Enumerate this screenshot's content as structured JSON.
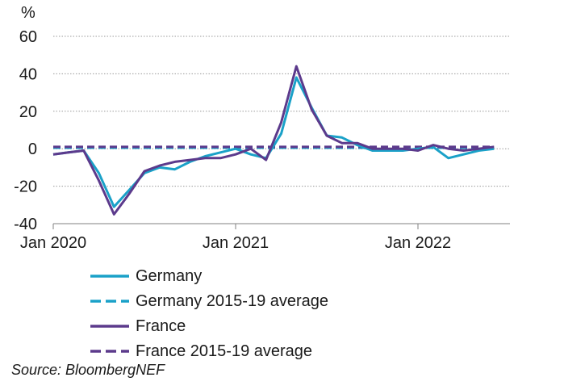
{
  "chart_data": {
    "type": "line",
    "ylabel": "%",
    "ylim": [
      -40,
      60
    ],
    "yticks": [
      -40,
      -20,
      0,
      20,
      40,
      60
    ],
    "xtick_labels": [
      "Jan 2020",
      "Jan 2021",
      "Jan 2022"
    ],
    "x": [
      "2020-01",
      "2020-02",
      "2020-03",
      "2020-04",
      "2020-05",
      "2020-06",
      "2020-07",
      "2020-08",
      "2020-09",
      "2020-10",
      "2020-11",
      "2020-12",
      "2021-01",
      "2021-02",
      "2021-03",
      "2021-04",
      "2021-05",
      "2021-06",
      "2021-07",
      "2021-08",
      "2021-09",
      "2021-10",
      "2021-11",
      "2021-12",
      "2022-01",
      "2022-02",
      "2022-03",
      "2022-04",
      "2022-05",
      "2022-06"
    ],
    "series": [
      {
        "name": "Germany",
        "color": "#1aa1c8",
        "style": "solid",
        "values": [
          -3,
          -2,
          -1,
          -13,
          -31,
          -22,
          -13,
          -10,
          -11,
          -7,
          -4,
          -2,
          0,
          -3,
          -5,
          8,
          38,
          22,
          7,
          6,
          2,
          -1,
          -1,
          -1,
          0,
          1,
          -5,
          -3,
          -1,
          0
        ]
      },
      {
        "name": "Germany 2015-19 average",
        "color": "#1aa1c8",
        "style": "dashed",
        "values": [
          0.5,
          0.5,
          0.5,
          0.5,
          0.5,
          0.5,
          0.5,
          0.5,
          0.5,
          0.5,
          0.5,
          0.5,
          0.5,
          0.5,
          0.5,
          0.5,
          0.5,
          0.5,
          0.5,
          0.5,
          0.5,
          0.5,
          0.5,
          0.5,
          0.5,
          0.5,
          0.5,
          0.5,
          0.5,
          0.5
        ]
      },
      {
        "name": "France",
        "color": "#5c3a8c",
        "style": "solid",
        "values": [
          -3,
          -2,
          -1,
          -17,
          -35,
          -24,
          -12,
          -9,
          -7,
          -6,
          -5,
          -5,
          -3,
          0,
          -6,
          14,
          44,
          21,
          7,
          3,
          3,
          0,
          0,
          0,
          -1,
          2,
          0,
          -1,
          0,
          1
        ]
      },
      {
        "name": "France 2015-19 average",
        "color": "#5c3a8c",
        "style": "dashed",
        "values": [
          1,
          1,
          1,
          1,
          1,
          1,
          1,
          1,
          1,
          1,
          1,
          1,
          1,
          1,
          1,
          1,
          1,
          1,
          1,
          1,
          1,
          1,
          1,
          1,
          1,
          1,
          1,
          1,
          1,
          1
        ]
      }
    ],
    "grid": "horizontal dotted",
    "legend_position": "bottom"
  },
  "source": "Source: BloombergNEF"
}
